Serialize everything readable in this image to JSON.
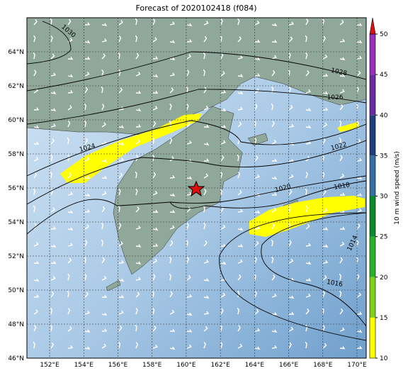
{
  "title": "Forecast of 2020102418 (f084)",
  "longitude_labels": [
    {
      "value": 152,
      "label": "152°E"
    },
    {
      "value": 154,
      "label": "154°E"
    },
    {
      "value": 156,
      "label": "156°E"
    },
    {
      "value": 158,
      "label": "158°E"
    },
    {
      "value": 160,
      "label": "160°E"
    },
    {
      "value": 162,
      "label": "162°E"
    },
    {
      "value": 164,
      "label": "164°E"
    },
    {
      "value": 166,
      "label": "166°E"
    },
    {
      "value": 168,
      "label": "168°E"
    },
    {
      "value": 170,
      "label": "170°E"
    }
  ],
  "latitude_labels": [
    {
      "value": 46,
      "label": "46°N"
    },
    {
      "value": 48,
      "label": "48°N"
    },
    {
      "value": 50,
      "label": "50°N"
    },
    {
      "value": 52,
      "label": "52°N"
    },
    {
      "value": 54,
      "label": "54°N"
    },
    {
      "value": 56,
      "label": "56°N"
    },
    {
      "value": 58,
      "label": "58°N"
    },
    {
      "value": 60,
      "label": "60°N"
    },
    {
      "value": 62,
      "label": "62°N"
    },
    {
      "value": 64,
      "label": "64°N"
    }
  ],
  "contour_labels": [
    "1030",
    "1028",
    "1026",
    "1024",
    "1022",
    "1020",
    "1018",
    "1016",
    "1014"
  ],
  "colorbar": {
    "label": "10 m wind speed (m/s)",
    "ticks": [
      10,
      15,
      20,
      25,
      30,
      35,
      40,
      45,
      50
    ],
    "colors": [
      "#ffff00",
      "#7fd21a",
      "#2ab12a",
      "#0a8a2a",
      "#346f9f",
      "#1f3f7a",
      "#6a2aa0",
      "#9a2fb8"
    ],
    "extend_color": "#e01010"
  }
}
